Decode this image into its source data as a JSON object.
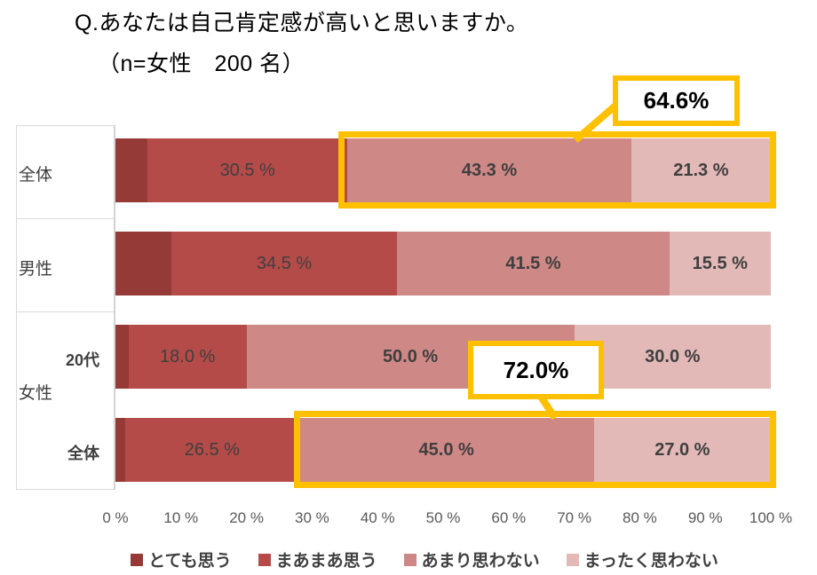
{
  "header": {
    "title": "Q.あなたは自己肯定感が高いと思いますか。",
    "subtitle": "（n=女性　200 名）"
  },
  "chart_data": {
    "type": "bar",
    "orientation": "horizontal",
    "stacked": true,
    "value_unit": "%",
    "xlim": [
      0,
      100
    ],
    "x_ticks": [
      "0 %",
      "10 %",
      "20 %",
      "30 %",
      "40 %",
      "50 %",
      "60 %",
      "70 %",
      "80 %",
      "90 %",
      "100 %"
    ],
    "grid": false,
    "legend_position": "bottom",
    "series": [
      {
        "name": "とても思う",
        "color": "#963A38"
      },
      {
        "name": "まあまあ思う",
        "color": "#B54B48"
      },
      {
        "name": "あまり思わない",
        "color": "#CE8886"
      },
      {
        "name": "まったく思わない",
        "color": "#E2B9B7"
      }
    ],
    "group_label": "女性",
    "rows": [
      {
        "group": "",
        "label": "全体",
        "bold_label": false,
        "values": [
          4.9,
          30.5,
          43.3,
          21.3
        ],
        "segment_labels": [
          "",
          "30.5 %",
          "43.3 %",
          "21.3 %"
        ]
      },
      {
        "group": "",
        "label": "男性",
        "bold_label": false,
        "values": [
          8.5,
          34.5,
          41.5,
          15.5
        ],
        "segment_labels": [
          "",
          "34.5 %",
          "41.5 %",
          "15.5 %"
        ]
      },
      {
        "group": "女性",
        "label": "20代",
        "bold_label": true,
        "values": [
          2.0,
          18.0,
          50.0,
          30.0
        ],
        "segment_labels": [
          "",
          "18.0 %",
          "50.0 %",
          "30.0 %"
        ]
      },
      {
        "group": "女性",
        "label": "全体",
        "bold_label": true,
        "values": [
          1.5,
          26.5,
          45.0,
          27.0
        ],
        "segment_labels": [
          "",
          "26.5 %",
          "45.0 %",
          "27.0 %"
        ]
      }
    ],
    "callouts": [
      {
        "text": "64.6%",
        "row": 0,
        "covers_series": [
          2,
          3
        ]
      },
      {
        "text": "72.0%",
        "row": 3,
        "covers_series": [
          2,
          3
        ]
      }
    ]
  },
  "colors": {
    "highlight": "#FFC000",
    "label_text": "#3F3F3F",
    "axis_text": "#595959",
    "frame_line": "#D9D9D9"
  }
}
